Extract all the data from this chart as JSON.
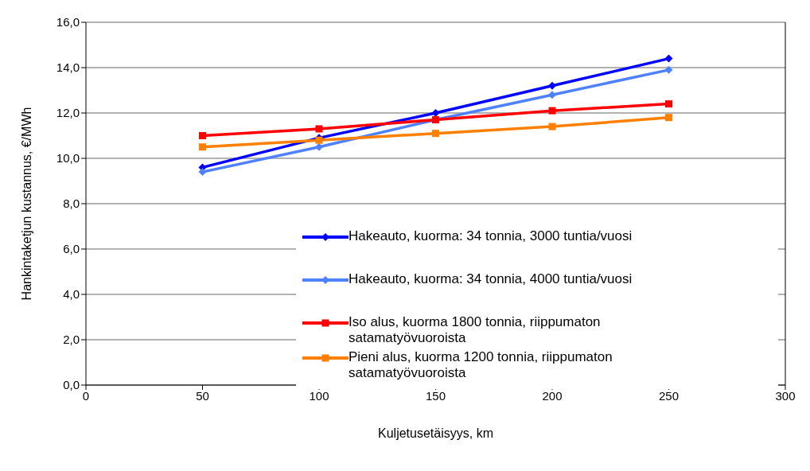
{
  "chart_data": {
    "type": "line",
    "xlabel": "Kuljetusetäisyys, km",
    "ylabel": "Hankintaketjun kustannus, €/MWh",
    "x": [
      50,
      100,
      150,
      200,
      250
    ],
    "series": [
      {
        "name": "Hakeauto, kuorma: 34 tonnia, 3000 tuntia/vuosi",
        "color": "#0000ff",
        "values": [
          9.6,
          10.9,
          12.0,
          13.2,
          14.4
        ],
        "marker": "diamond"
      },
      {
        "name": "Hakeauto, kuorma: 34 tonnia, 4000 tuntia/vuosi",
        "color": "#4f81ff",
        "values": [
          9.4,
          10.5,
          11.7,
          12.8,
          13.9
        ],
        "marker": "diamond"
      },
      {
        "name": "Iso alus, kuorma 1800 tonnia, riippumaton satamatyövuoroista",
        "color": "#ff0000",
        "values": [
          11.0,
          11.3,
          11.7,
          12.1,
          12.4
        ],
        "marker": "square"
      },
      {
        "name": "Pieni alus, kuorma 1200 tonnia, riippumaton satamatyövuoroista",
        "color": "#ff7f00",
        "values": [
          10.5,
          10.8,
          11.1,
          11.4,
          11.8
        ],
        "marker": "square"
      }
    ],
    "xlim": [
      0,
      300
    ],
    "xticks": [
      0,
      50,
      100,
      150,
      200,
      250,
      300
    ],
    "ylim": [
      0,
      16
    ],
    "yticks": [
      {
        "value": 0,
        "label": "0,0"
      },
      {
        "value": 2,
        "label": "2,0"
      },
      {
        "value": 4,
        "label": "4,0"
      },
      {
        "value": 6,
        "label": "6,0"
      },
      {
        "value": 8,
        "label": "8,0"
      },
      {
        "value": 10,
        "label": "10,0"
      },
      {
        "value": 12,
        "label": "12,0"
      },
      {
        "value": 14,
        "label": "14,0"
      },
      {
        "value": 16,
        "label": "16,0"
      }
    ],
    "grid": "y",
    "legend": "bottom right",
    "line_style": "solid"
  }
}
